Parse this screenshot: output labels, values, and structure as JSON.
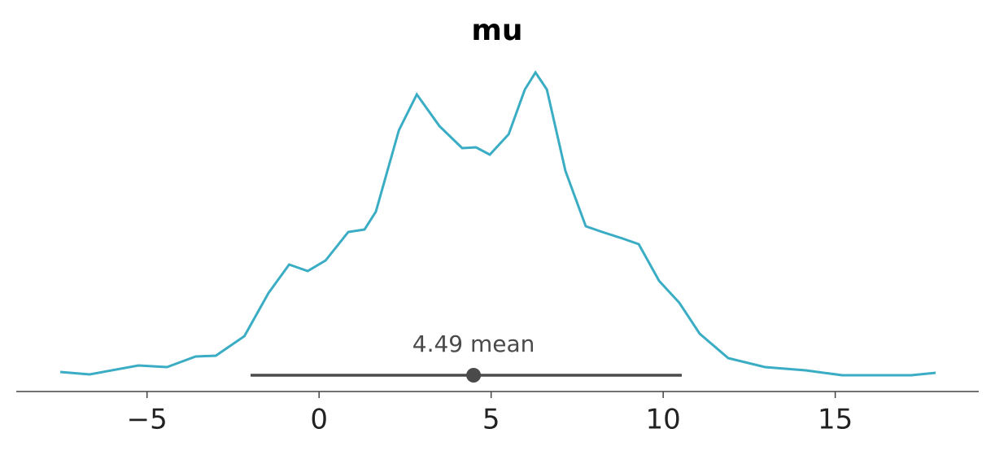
{
  "chart_data": {
    "type": "density",
    "title": "mu",
    "x": [
      -7.52,
      -6.67,
      -5.25,
      -4.42,
      -3.59,
      -3.0,
      -2.17,
      -1.47,
      -0.87,
      -0.33,
      0.19,
      0.85,
      1.32,
      1.65,
      2.32,
      2.84,
      3.5,
      4.16,
      4.56,
      4.96,
      5.51,
      5.98,
      6.29,
      6.62,
      7.16,
      7.75,
      8.23,
      8.82,
      9.29,
      9.88,
      10.47,
      11.06,
      11.89,
      12.96,
      14.14,
      15.2,
      16.26,
      17.21,
      17.92
    ],
    "y": [
      0.0008,
      0.0002,
      0.0024,
      0.002,
      0.0046,
      0.0048,
      0.0096,
      0.0202,
      0.0272,
      0.0256,
      0.0282,
      0.0352,
      0.0358,
      0.0402,
      0.0602,
      0.069,
      0.0612,
      0.0558,
      0.056,
      0.0542,
      0.0592,
      0.0702,
      0.0744,
      0.0702,
      0.0502,
      0.0366,
      0.0352,
      0.0336,
      0.0322,
      0.0232,
      0.0178,
      0.0102,
      0.0042,
      0.002,
      0.0012,
      0.0,
      0.0,
      0.0,
      0.0006
    ],
    "color": "#3aadc4",
    "hdi": [
      -1.99,
      10.54
    ],
    "hdi_color": "#4a4a4a",
    "mean": 4.49,
    "mean_label": "4.49 mean",
    "xlim": [
      -8.8,
      19.17
    ],
    "ylim": [
      -0.004,
      0.0802
    ],
    "xticks": [
      {
        "value": -5,
        "label": "−5"
      },
      0,
      5,
      10,
      15
    ]
  }
}
